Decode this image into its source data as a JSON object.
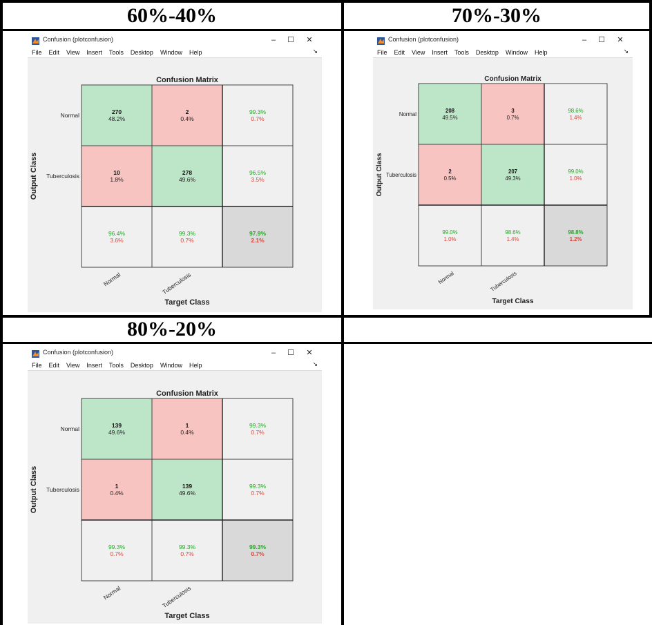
{
  "headers": [
    "60%-40%",
    "70%-30%",
    "80%-20%"
  ],
  "window": {
    "title": "Confusion (plotconfusion)",
    "menu": [
      "File",
      "Edit",
      "View",
      "Insert",
      "Tools",
      "Desktop",
      "Window",
      "Help"
    ],
    "minimize": "–",
    "maximize": "☐",
    "close": "✕",
    "dock": "↘"
  },
  "colors": {
    "green": "#bde6c8",
    "red": "#f8c4c2",
    "grey": "#d9d9d9",
    "light": "#f0f0f0",
    "textGreen": "#2ca02c",
    "textRed": "#d9473b"
  },
  "chart_data": [
    {
      "type": "heatmap",
      "title": "Confusion Matrix",
      "xlabel": "Target Class",
      "ylabel": "Output Class",
      "classes": [
        "Normal",
        "Tuberculosis"
      ],
      "matrix": [
        [
          270,
          2
        ],
        [
          10,
          278
        ]
      ],
      "cell_percent": [
        [
          "48.2%",
          "0.4%"
        ],
        [
          "1.8%",
          "49.6%"
        ]
      ],
      "row_summary": [
        [
          "99.3%",
          "0.7%"
        ],
        [
          "96.5%",
          "3.5%"
        ]
      ],
      "col_summary": [
        [
          "96.4%",
          "3.6%"
        ],
        [
          "99.3%",
          "0.7%"
        ]
      ],
      "overall": [
        "97.9%",
        "2.1%"
      ]
    },
    {
      "type": "heatmap",
      "title": "Confusion Matrix",
      "xlabel": "Target Class",
      "ylabel": "Output Class",
      "classes": [
        "Normal",
        "Tuberculosis"
      ],
      "matrix": [
        [
          208,
          3
        ],
        [
          2,
          207
        ]
      ],
      "cell_percent": [
        [
          "49.5%",
          "0.7%"
        ],
        [
          "0.5%",
          "49.3%"
        ]
      ],
      "row_summary": [
        [
          "98.6%",
          "1.4%"
        ],
        [
          "99.0%",
          "1.0%"
        ]
      ],
      "col_summary": [
        [
          "99.0%",
          "1.0%"
        ],
        [
          "98.6%",
          "1.4%"
        ]
      ],
      "overall": [
        "98.8%",
        "1.2%"
      ]
    },
    {
      "type": "heatmap",
      "title": "Confusion Matrix",
      "xlabel": "Target Class",
      "ylabel": "Output Class",
      "classes": [
        "Normal",
        "Tuberculosis"
      ],
      "matrix": [
        [
          139,
          1
        ],
        [
          1,
          139
        ]
      ],
      "cell_percent": [
        [
          "49.6%",
          "0.4%"
        ],
        [
          "0.4%",
          "49.6%"
        ]
      ],
      "row_summary": [
        [
          "99.3%",
          "0.7%"
        ],
        [
          "99.3%",
          "0.7%"
        ]
      ],
      "col_summary": [
        [
          "99.3%",
          "0.7%"
        ],
        [
          "99.3%",
          "0.7%"
        ]
      ],
      "overall": [
        "99.3%",
        "0.7%"
      ]
    }
  ]
}
